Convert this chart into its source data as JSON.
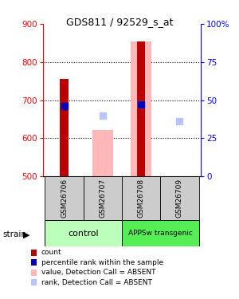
{
  "title": "GDS811 / 92529_s_at",
  "samples": [
    "GSM26706",
    "GSM26707",
    "GSM26708",
    "GSM26709"
  ],
  "ylim_left": [
    500,
    900
  ],
  "ylim_right": [
    0,
    100
  ],
  "yticks_left": [
    500,
    600,
    700,
    800,
    900
  ],
  "yticks_right": [
    0,
    25,
    50,
    75,
    100
  ],
  "ytick_right_labels": [
    "0",
    "25",
    "50",
    "75",
    "100%"
  ],
  "count_values": [
    755,
    null,
    855,
    null
  ],
  "percentile_values": [
    685,
    null,
    688,
    null
  ],
  "absent_value_bars": [
    null,
    622,
    855,
    null
  ],
  "absent_rank_dots": [
    null,
    660,
    688,
    645
  ],
  "bar_bottom": 500,
  "count_color": "#bb0000",
  "percentile_color": "#0000bb",
  "absent_value_color": "#ffb8b8",
  "absent_rank_color": "#b8c4ff",
  "control_color": "#bbffbb",
  "transgenic_color": "#55ee55",
  "sample_box_color": "#cccccc",
  "legend_items": [
    {
      "label": "count",
      "color": "#bb0000"
    },
    {
      "label": "percentile rank within the sample",
      "color": "#0000bb"
    },
    {
      "label": "value, Detection Call = ABSENT",
      "color": "#ffb8b8"
    },
    {
      "label": "rank, Detection Call = ABSENT",
      "color": "#b8c4ff"
    }
  ]
}
